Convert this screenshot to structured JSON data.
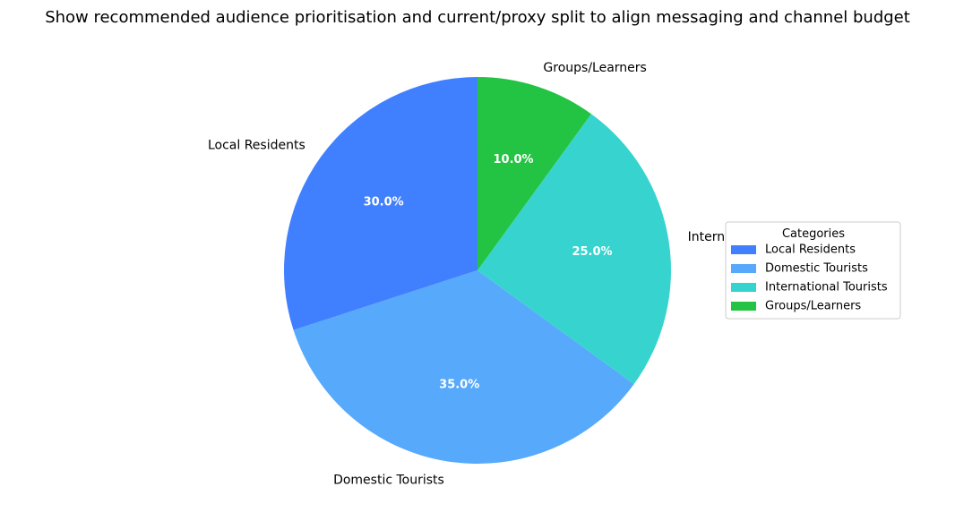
{
  "chart_data": {
    "type": "pie",
    "title": "Show recommended audience prioritisation and current/proxy split to align messaging and channel budget",
    "categories": [
      "Local Residents",
      "Domestic Tourists",
      "International Tourists",
      "Groups/Learners"
    ],
    "values": [
      30,
      35,
      25,
      10
    ],
    "percent_labels": [
      "30.0%",
      "35.0%",
      "25.0%",
      "10.0%"
    ],
    "colors": [
      "#4080FF",
      "#57A9FB",
      "#37D4CF",
      "#23C343"
    ],
    "start_angle_deg": 90,
    "direction": "counterclockwise",
    "legend": {
      "title": "Categories",
      "placement": "right"
    }
  }
}
